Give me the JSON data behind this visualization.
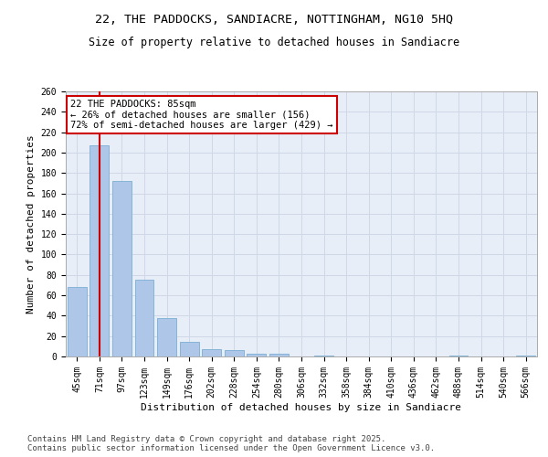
{
  "title_line1": "22, THE PADDOCKS, SANDIACRE, NOTTINGHAM, NG10 5HQ",
  "title_line2": "Size of property relative to detached houses in Sandiacre",
  "xlabel": "Distribution of detached houses by size in Sandiacre",
  "ylabel": "Number of detached properties",
  "categories": [
    "45sqm",
    "71sqm",
    "97sqm",
    "123sqm",
    "149sqm",
    "176sqm",
    "202sqm",
    "228sqm",
    "254sqm",
    "280sqm",
    "306sqm",
    "332sqm",
    "358sqm",
    "384sqm",
    "410sqm",
    "436sqm",
    "462sqm",
    "488sqm",
    "514sqm",
    "540sqm",
    "566sqm"
  ],
  "values": [
    68,
    207,
    172,
    75,
    38,
    14,
    7,
    6,
    3,
    3,
    0,
    1,
    0,
    0,
    0,
    0,
    0,
    1,
    0,
    0,
    1
  ],
  "bar_color": "#aec6e8",
  "bar_edge_color": "#7bafd4",
  "grid_color": "#d0d8e8",
  "background_color": "#e8eef8",
  "vline_x": 1,
  "vline_color": "#cc0000",
  "annotation_line1": "22 THE PADDOCKS: 85sqm",
  "annotation_line2": "← 26% of detached houses are smaller (156)",
  "annotation_line3": "72% of semi-detached houses are larger (429) →",
  "annotation_box_color": "#cc0000",
  "ylim": [
    0,
    260
  ],
  "yticks": [
    0,
    20,
    40,
    60,
    80,
    100,
    120,
    140,
    160,
    180,
    200,
    220,
    240,
    260
  ],
  "footer_line1": "Contains HM Land Registry data © Crown copyright and database right 2025.",
  "footer_line2": "Contains public sector information licensed under the Open Government Licence v3.0.",
  "title_fontsize": 9.5,
  "subtitle_fontsize": 8.5,
  "axis_label_fontsize": 8,
  "tick_fontsize": 7,
  "annotation_fontsize": 7.5,
  "footer_fontsize": 6.5
}
